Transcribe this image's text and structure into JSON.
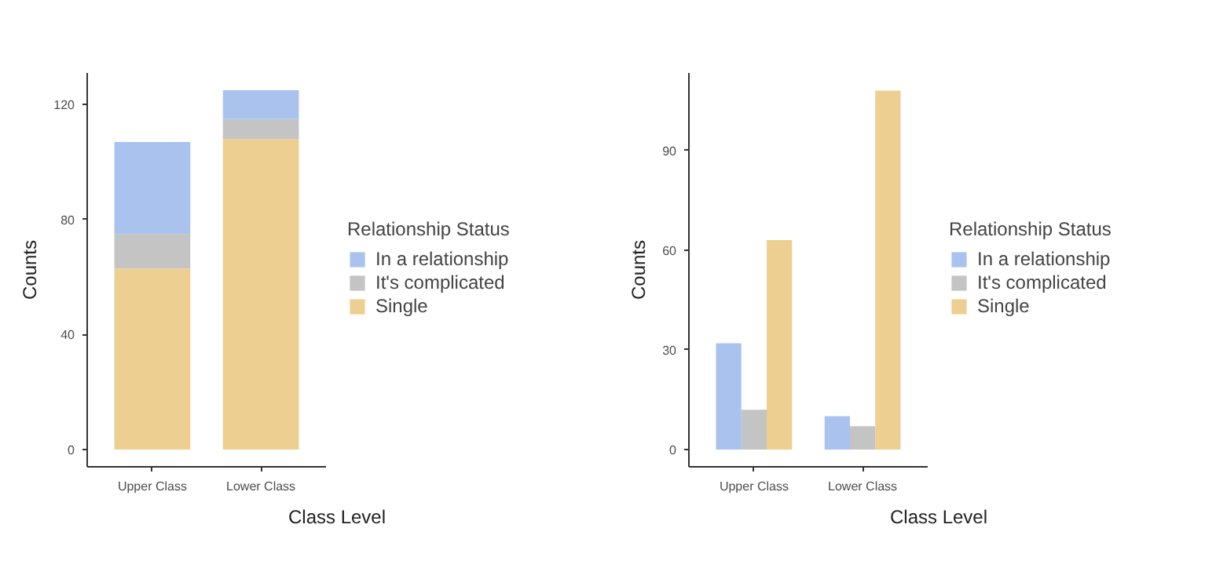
{
  "chart_data": [
    {
      "type": "bar",
      "stacked": true,
      "categories": [
        "Upper Class",
        "Lower Class"
      ],
      "xlabel": "Class Level",
      "ylabel": "Counts",
      "legend_title": "Relationship Status",
      "legend": "right",
      "grid": false,
      "ylim": [
        -6,
        131
      ],
      "yticks": [
        0,
        40,
        80,
        120
      ],
      "series": [
        {
          "name": "Single",
          "color": "#eecf92",
          "values": [
            63,
            108
          ]
        },
        {
          "name": "It's complicated",
          "color": "#c4c4c4",
          "values": [
            12,
            7
          ]
        },
        {
          "name": "In a relationship",
          "color": "#a9c3ee",
          "values": [
            32,
            10
          ]
        }
      ]
    },
    {
      "type": "bar",
      "categories": [
        "Upper Class",
        "Lower Class"
      ],
      "xlabel": "Class Level",
      "ylabel": "Counts",
      "legend_title": "Relationship Status",
      "legend": "right",
      "grid": false,
      "ylim": [
        -5.2,
        113.3
      ],
      "yticks": [
        0,
        30,
        60,
        90
      ],
      "series": [
        {
          "name": "In a relationship",
          "color": "#a9c3ee",
          "values": [
            32,
            10
          ]
        },
        {
          "name": "It's complicated",
          "color": "#c4c4c4",
          "values": [
            12,
            7
          ]
        },
        {
          "name": "Single",
          "color": "#eecf92",
          "values": [
            63,
            108
          ]
        }
      ]
    }
  ]
}
